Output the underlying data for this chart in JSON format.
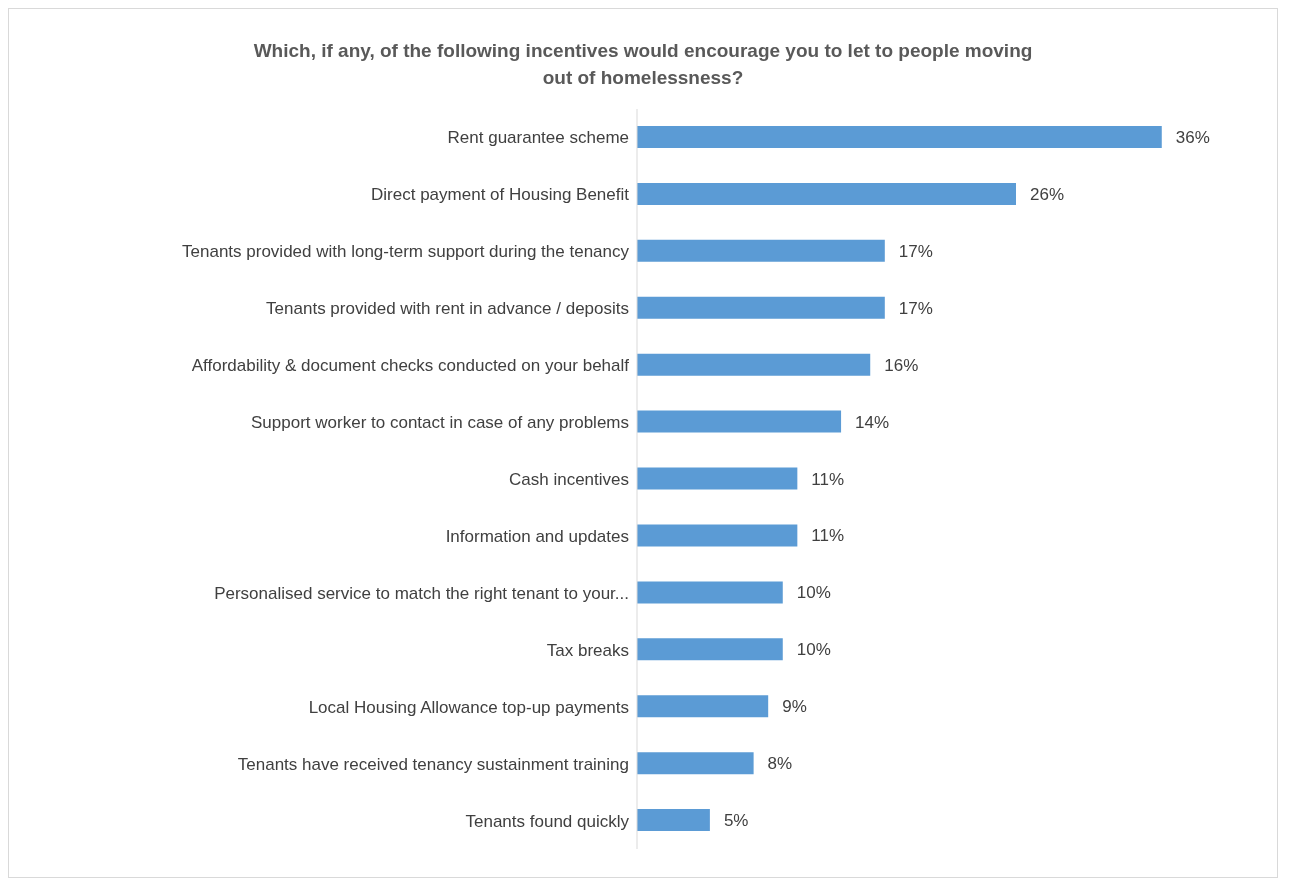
{
  "chart_data": {
    "type": "bar",
    "orientation": "horizontal",
    "title": "Which, if any, of the following incentives would encourage you to let to people moving out of homelessness?",
    "categories": [
      "Rent guarantee scheme",
      "Direct payment of Housing Benefit",
      "Tenants provided with long-term support during the tenancy",
      "Tenants provided with rent in advance / deposits",
      "Affordability & document checks conducted on your behalf",
      "Support worker to contact in case of any problems",
      "Cash incentives",
      "Information and updates",
      "Personalised service to match the right tenant to your...",
      "Tax breaks",
      "Local Housing Allowance top-up payments",
      "Tenants have received tenancy sustainment training",
      "Tenants found quickly"
    ],
    "values": [
      36,
      26,
      17,
      17,
      16,
      14,
      11,
      11,
      10,
      10,
      9,
      8,
      5
    ],
    "value_labels": [
      "36%",
      "26%",
      "17%",
      "17%",
      "16%",
      "14%",
      "11%",
      "11%",
      "10%",
      "10%",
      "9%",
      "8%",
      "5%"
    ],
    "color": "#5b9bd5",
    "grid": false,
    "legend": false,
    "tick_labels": "y"
  }
}
